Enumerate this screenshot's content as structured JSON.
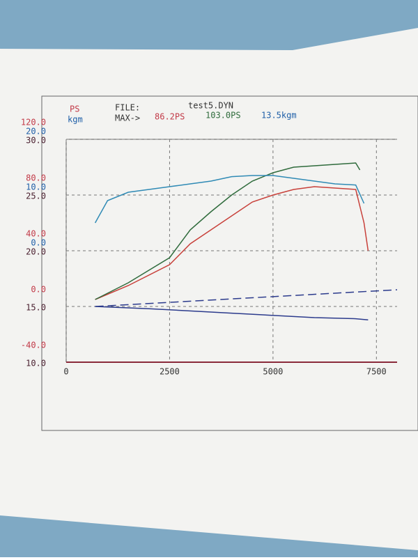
{
  "header": {
    "ps": "PS",
    "kgm": "kgm",
    "file_label": "FILE:",
    "file_name": "test5.DYN",
    "max_label": "MAX->",
    "max_ps": "86.2PS",
    "max_ps2": "103.0PS",
    "max_kgm": "13.5kgm"
  },
  "chart_data": {
    "type": "line",
    "xlim": [
      0,
      8000
    ],
    "xticks": [
      0,
      2500,
      5000,
      7500
    ],
    "grid": true,
    "ylim": [
      -40,
      120
    ],
    "yticks": [
      {
        "value": 120,
        "label": "120.0"
      },
      {
        "value": 80,
        "label": "80.0"
      },
      {
        "value": 40,
        "label": "40.0"
      },
      {
        "value": 0,
        "label": "0.0"
      },
      {
        "value": -40,
        "label": "-40.0"
      }
    ],
    "y2lim": [
      -20,
      20
    ],
    "y2ticks": [
      {
        "value": 20,
        "label": "20.0"
      },
      {
        "value": 10,
        "label": "10.0"
      },
      {
        "value": 0,
        "label": "0.0"
      }
    ],
    "y3lim": [
      10,
      30
    ],
    "y3ticks": [
      {
        "value": 30,
        "label": "30.0"
      },
      {
        "value": 25,
        "label": "25.0"
      },
      {
        "value": 20,
        "label": "20.0"
      },
      {
        "value": 15,
        "label": "15.0"
      },
      {
        "value": 10,
        "label": "10.0"
      }
    ],
    "ycolor": "#c23a48",
    "y2color": "#1f5fa8",
    "y3color": "#4a2030",
    "series": [
      {
        "name": "PS",
        "color": "#c8403a",
        "x": [
          700,
          1500,
          2500,
          3000,
          3500,
          4000,
          4500,
          5000,
          5500,
          6000,
          6500,
          7000,
          7200,
          7300
        ],
        "values": [
          5,
          15,
          30,
          45,
          55,
          65,
          75,
          80,
          84,
          86,
          85,
          84,
          60,
          40
        ]
      },
      {
        "color": "#2f6b3c",
        "x": [
          700,
          1500,
          2500,
          3000,
          3500,
          4000,
          4500,
          5000,
          5500,
          6000,
          6500,
          7000,
          7100
        ],
        "values": [
          5,
          17,
          35,
          55,
          68,
          80,
          90,
          96,
          100,
          101,
          102,
          103,
          98
        ]
      },
      {
        "name": "kgm",
        "color": "#2f8ab5",
        "axis": "y2",
        "x": [
          700,
          1000,
          1500,
          2000,
          2500,
          3000,
          3500,
          4000,
          4500,
          5000,
          5500,
          6000,
          6500,
          7000,
          7200
        ],
        "values": [
          5,
          9,
          10.5,
          11,
          11.5,
          12,
          12.5,
          13.3,
          13.5,
          13.5,
          13,
          12.5,
          12,
          11.8,
          8.5
        ]
      },
      {
        "color": "#2b3a8c",
        "axis": "y3",
        "dashed": true,
        "x": [
          700,
          8000
        ],
        "values": [
          15,
          16.5
        ]
      },
      {
        "color": "#2b3a8c",
        "axis": "y3",
        "x": [
          700,
          2000,
          4000,
          6000,
          7000,
          7300
        ],
        "values": [
          15,
          14.8,
          14.4,
          14,
          13.9,
          13.8
        ]
      }
    ]
  }
}
